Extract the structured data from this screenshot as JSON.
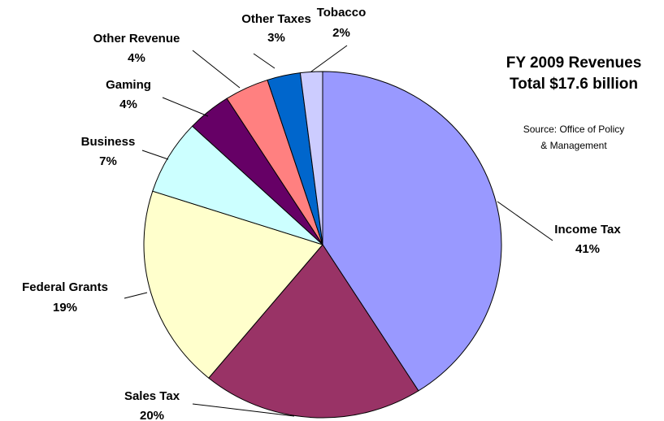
{
  "chart_data": {
    "type": "pie",
    "title": "FY 2009 Revenues",
    "subtitle": "Total $17.6 billion",
    "source": [
      "Source:  Office of Policy",
      "& Management"
    ],
    "categories": [
      "Income Tax",
      "Sales Tax",
      "Federal Grants",
      "Business",
      "Gaming",
      "Other Revenue",
      "Other Taxes",
      "Tobacco"
    ],
    "values": [
      41,
      20,
      19,
      7,
      4,
      4,
      3,
      2
    ],
    "value_labels": [
      "41%",
      "20%",
      "19%",
      "7%",
      "4%",
      "4%",
      "3%",
      "2%"
    ],
    "colors": [
      "#9999ff",
      "#993366",
      "#ffffcc",
      "#ccffff",
      "#660066",
      "#ff8080",
      "#0066cc",
      "#ccccff"
    ]
  }
}
